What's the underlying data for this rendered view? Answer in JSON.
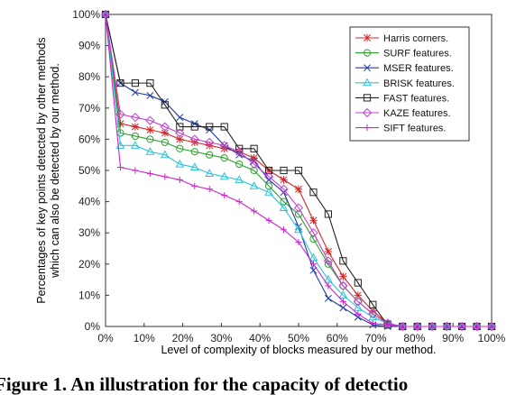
{
  "caption": "Figure 1. An illustration for the capacity of detectio",
  "chart_data": {
    "type": "line",
    "xlabel": "Level of complexity of blocks measured by our method.",
    "ylabel_line1": "Percentages of key points detected by other methods",
    "ylabel_line2": "which can also be detected by our method.",
    "xlim": [
      0,
      100
    ],
    "ylim": [
      0,
      100
    ],
    "x_ticks": [
      "0%",
      "10%",
      "20%",
      "30%",
      "40%",
      "50%",
      "60%",
      "70%",
      "80%",
      "90%",
      "100%"
    ],
    "y_ticks": [
      "0%",
      "10%",
      "20%",
      "30%",
      "40%",
      "50%",
      "60%",
      "70%",
      "80%",
      "90%",
      "100%"
    ],
    "grid": false,
    "legend_position": "top-right",
    "x": [
      0,
      3.85,
      7.69,
      11.54,
      15.38,
      19.23,
      23.08,
      26.92,
      30.77,
      34.62,
      38.46,
      42.31,
      46.15,
      50.0,
      53.85,
      57.69,
      61.54,
      65.38,
      69.23,
      73.08,
      76.92,
      80.77,
      84.62,
      88.46,
      92.31,
      96.15,
      100.0
    ],
    "series": [
      {
        "name": "Harris corners.",
        "color": "#d62728",
        "marker": "star",
        "values": [
          100,
          65,
          64,
          63,
          62,
          60,
          59,
          58,
          57,
          56,
          54,
          50,
          47,
          44,
          34,
          24,
          16,
          10,
          5,
          1,
          0,
          0,
          0,
          0,
          0,
          0,
          0
        ]
      },
      {
        "name": "SURF features.",
        "color": "#2ca02c",
        "marker": "circle",
        "values": [
          100,
          62,
          61,
          60,
          59,
          57,
          56,
          55,
          54,
          52,
          50,
          45,
          40,
          36,
          28,
          20,
          13,
          8,
          4,
          1,
          0,
          0,
          0,
          0,
          0,
          0,
          0
        ]
      },
      {
        "name": "MSER features.",
        "color": "#1f3aa8",
        "marker": "x",
        "values": [
          100,
          78,
          75,
          74,
          72,
          67,
          65,
          63,
          58,
          55,
          53,
          47,
          43,
          32,
          18,
          9,
          6,
          3,
          0.5,
          0,
          0,
          0,
          0,
          0,
          0,
          0,
          0
        ]
      },
      {
        "name": "BRISK features.",
        "color": "#2bc4d8",
        "marker": "triangle",
        "values": [
          100,
          58,
          58,
          56,
          55,
          52,
          51,
          49,
          48,
          47,
          45,
          43,
          38,
          31,
          22,
          15,
          10,
          6,
          3,
          1,
          0,
          0,
          0,
          0,
          0,
          0,
          0
        ]
      },
      {
        "name": "FAST features.",
        "color": "#222222",
        "marker": "square",
        "values": [
          100,
          78,
          78,
          78,
          71,
          64,
          64,
          64,
          64,
          57,
          57,
          50,
          50,
          50,
          43,
          36,
          21,
          14,
          7,
          0.5,
          0,
          0,
          0,
          0,
          0,
          0,
          0
        ]
      },
      {
        "name": "KAZE features.",
        "color": "#c040d0",
        "marker": "diamond",
        "values": [
          100,
          68,
          67,
          66,
          64,
          62,
          60,
          59,
          58,
          56,
          52,
          48,
          44,
          38,
          30,
          21,
          13,
          8,
          4,
          1,
          0,
          0,
          0,
          0,
          0,
          0,
          0
        ]
      },
      {
        "name": "SIFT features.",
        "color": "#d024d0",
        "marker": "plus",
        "values": [
          100,
          51,
          50,
          49,
          48,
          47,
          45,
          44,
          42,
          40,
          37,
          34,
          31,
          27,
          20,
          13,
          8,
          4,
          1,
          0.5,
          0,
          0,
          0,
          0,
          0,
          0,
          0
        ]
      }
    ]
  }
}
